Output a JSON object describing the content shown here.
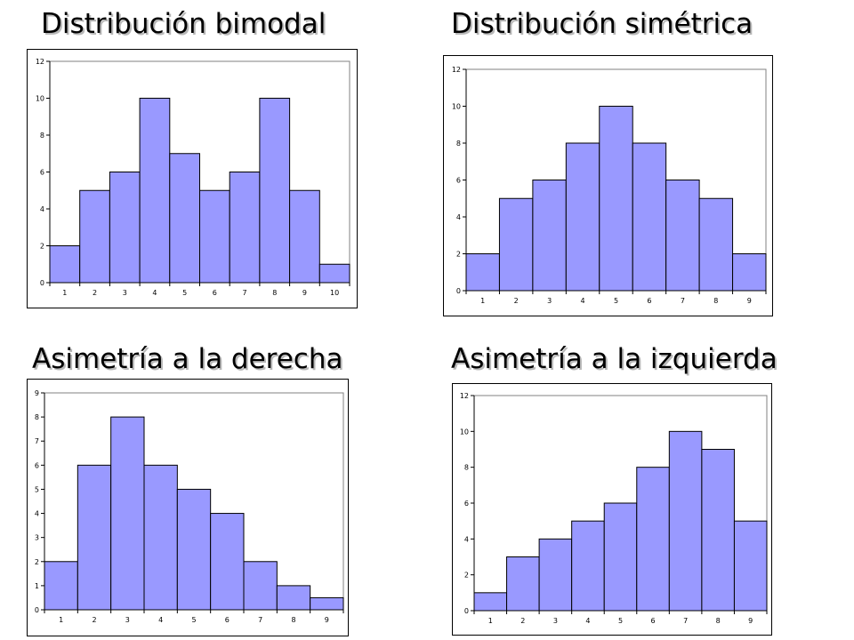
{
  "colors": {
    "bar_fill": "#9999ff",
    "bar_stroke": "#000000",
    "plot_frame": "#808080",
    "axis": "#000000"
  },
  "chart_data": [
    {
      "type": "bar",
      "title": "Distribución bimodal",
      "categories": [
        "1",
        "2",
        "3",
        "4",
        "5",
        "6",
        "7",
        "8",
        "9",
        "10"
      ],
      "values": [
        2,
        5,
        6,
        10,
        7,
        5,
        6,
        10,
        5,
        1
      ],
      "ylim": [
        0,
        12
      ],
      "yticks": [
        0,
        2,
        4,
        6,
        8,
        10,
        12
      ],
      "xlabel": "",
      "ylabel": "",
      "grid": false,
      "legend": "none"
    },
    {
      "type": "bar",
      "title": "Distribución simétrica",
      "categories": [
        "1",
        "2",
        "3",
        "4",
        "5",
        "6",
        "7",
        "8",
        "9"
      ],
      "values": [
        2,
        5,
        6,
        8,
        10,
        8,
        6,
        5,
        2
      ],
      "ylim": [
        0,
        12
      ],
      "yticks": [
        0,
        2,
        4,
        6,
        8,
        10,
        12
      ],
      "xlabel": "",
      "ylabel": "",
      "grid": false,
      "legend": "none"
    },
    {
      "type": "bar",
      "title": "Asimetría a la derecha",
      "categories": [
        "1",
        "2",
        "3",
        "4",
        "5",
        "6",
        "7",
        "8",
        "9"
      ],
      "values": [
        2,
        6,
        8,
        6,
        5,
        4,
        2,
        1,
        0.5
      ],
      "ylim": [
        0,
        9
      ],
      "yticks": [
        0,
        1,
        2,
        3,
        4,
        5,
        6,
        7,
        8,
        9
      ],
      "xlabel": "",
      "ylabel": "",
      "grid": false,
      "legend": "none"
    },
    {
      "type": "bar",
      "title": "Asimetría a la izquierda",
      "categories": [
        "1",
        "2",
        "3",
        "4",
        "5",
        "6",
        "7",
        "8",
        "9"
      ],
      "values": [
        1,
        3,
        4,
        5,
        6,
        8,
        10,
        9,
        5
      ],
      "ylim": [
        0,
        12
      ],
      "yticks": [
        0,
        2,
        4,
        6,
        8,
        10,
        12
      ],
      "xlabel": "",
      "ylabel": "",
      "grid": false,
      "legend": "none"
    }
  ]
}
